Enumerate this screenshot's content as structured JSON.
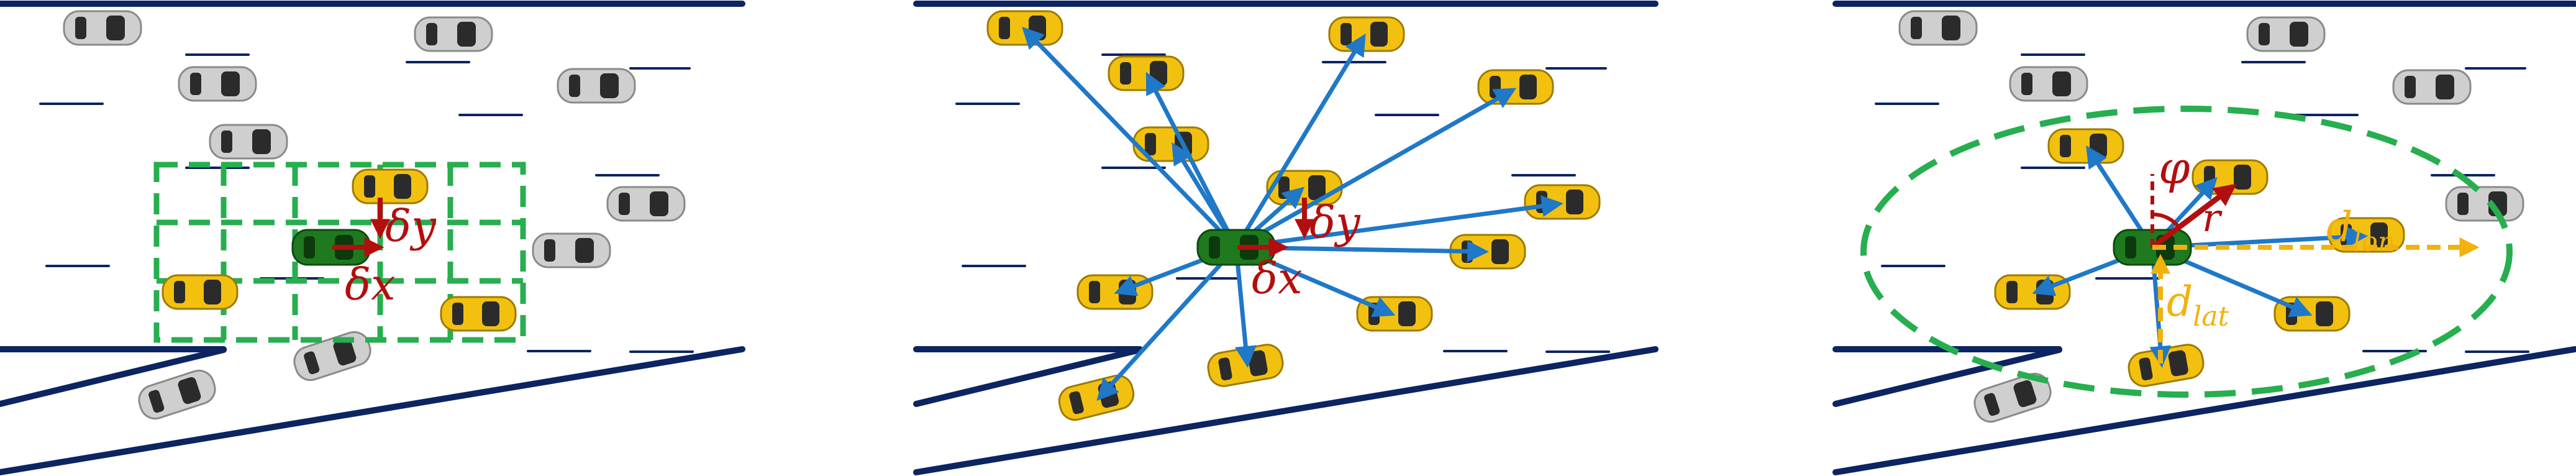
{
  "colors": {
    "road": "#0c2461",
    "grid": "#27ae4f",
    "ego": "#1f7a1f",
    "neighbor": "#f2c10f",
    "background_car": "#cfcfcf",
    "link": "#1f78c8",
    "offset": "#b30e0e",
    "distance": "#f2b10c"
  },
  "panels": [
    {
      "id": "grid",
      "labels": {
        "dy": "δy",
        "dx": "δx"
      }
    },
    {
      "id": "graph",
      "labels": {
        "dy": "δy",
        "dx": "δx"
      }
    },
    {
      "id": "polar",
      "labels": {
        "phi": "φ",
        "r": "r",
        "d_lon_main": "d",
        "d_lon_sub": "lon",
        "d_lat_main": "d",
        "d_lat_sub": "lat"
      }
    }
  ],
  "icons": {
    "car": "car-icon",
    "ego": "ego-car-icon"
  }
}
